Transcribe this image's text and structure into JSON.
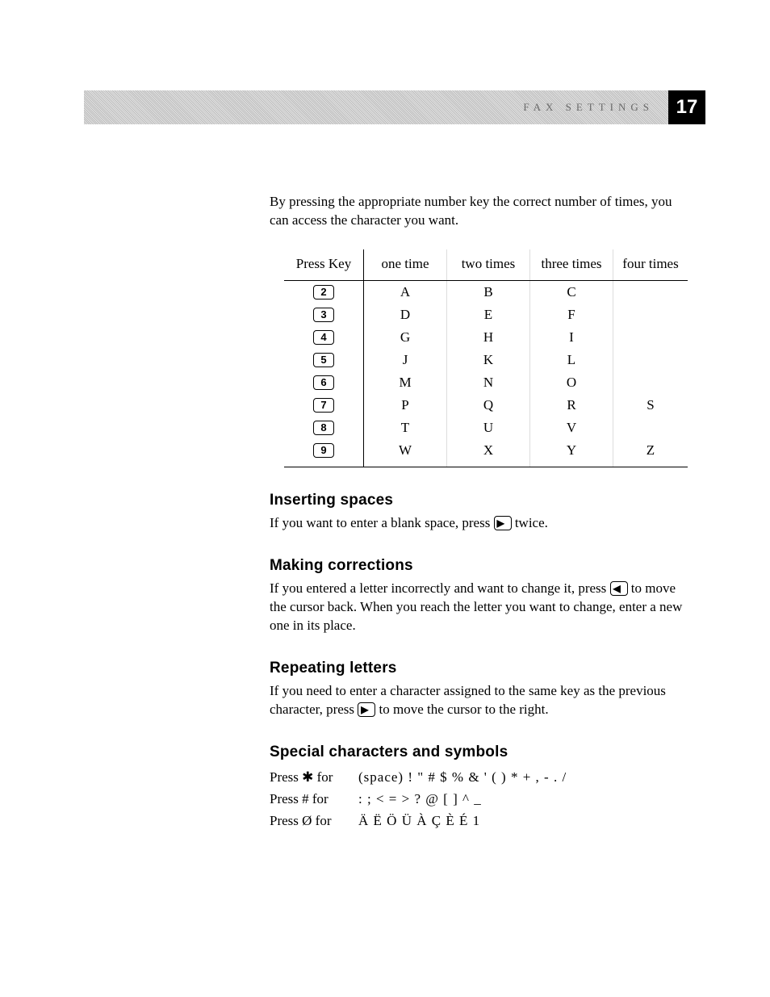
{
  "header": {
    "section_title": "FAX SETTINGS",
    "page_number": "17"
  },
  "intro": "By pressing the appropriate number key the correct number of times, you can access the character you want.",
  "table": {
    "columns": [
      "Press Key",
      "one time",
      "two times",
      "three times",
      "four times"
    ],
    "rows": [
      {
        "key": "2",
        "c1": "A",
        "c2": "B",
        "c3": "C",
        "c4": ""
      },
      {
        "key": "3",
        "c1": "D",
        "c2": "E",
        "c3": "F",
        "c4": ""
      },
      {
        "key": "4",
        "c1": "G",
        "c2": "H",
        "c3": "I",
        "c4": ""
      },
      {
        "key": "5",
        "c1": "J",
        "c2": "K",
        "c3": "L",
        "c4": ""
      },
      {
        "key": "6",
        "c1": "M",
        "c2": "N",
        "c3": "O",
        "c4": ""
      },
      {
        "key": "7",
        "c1": "P",
        "c2": "Q",
        "c3": "R",
        "c4": "S"
      },
      {
        "key": "8",
        "c1": "T",
        "c2": "U",
        "c3": "V",
        "c4": ""
      },
      {
        "key": "9",
        "c1": "W",
        "c2": "X",
        "c3": "Y",
        "c4": "Z"
      }
    ]
  },
  "sections": {
    "spaces": {
      "title": "Inserting spaces",
      "text_before": "If you want to enter a blank space, press ",
      "key_glyph": "▶",
      "text_after": " twice."
    },
    "corrections": {
      "title": "Making corrections",
      "text_before": "If you entered a letter incorrectly and want to change it, press ",
      "key_glyph": "◀",
      "text_after": " to move the cursor back. When you reach the letter you want to change, enter a new one in its place."
    },
    "repeating": {
      "title": "Repeating letters",
      "text_before": "If you need to enter a character assigned to the same key as the previous character, press ",
      "key_glyph": "▶",
      "text_after": " to move the cursor to the right."
    },
    "special": {
      "title": "Special characters and symbols",
      "rows": [
        {
          "label": "Press ✱ for",
          "chars": "(space) ! \" # $ % & ' ( ) * + , - . /"
        },
        {
          "label": "Press # for",
          "chars": ": ; < = > ? @ [ ] ^ _"
        },
        {
          "label": "Press Ø for",
          "chars": "Ä Ë Ö Ü À Ç È É 1"
        }
      ]
    }
  }
}
